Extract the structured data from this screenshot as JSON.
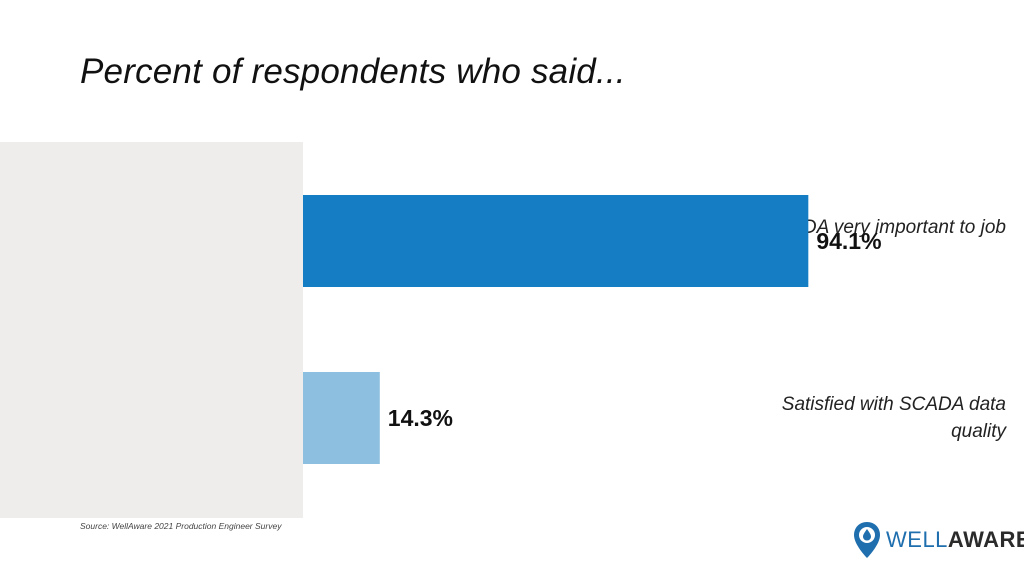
{
  "title": "Percent of respondents who said...",
  "source": "Source: WellAware 2021 Production Engineer Survey",
  "logo": {
    "part1": "WELL",
    "part2": "AWARE"
  },
  "colors": {
    "bar1": "#147dc3",
    "bar2": "#8dbfe1",
    "panel": "#eeedec"
  },
  "chart_data": {
    "type": "bar",
    "orientation": "horizontal",
    "categories": [
      "SCADA very important to job",
      "Satisfied with SCADA data quality"
    ],
    "values": [
      94.1,
      14.3
    ],
    "value_labels": [
      "94.1%",
      "14.3%"
    ],
    "title": "Percent of respondents who said...",
    "xlim": [
      0,
      100
    ],
    "grid": false
  }
}
